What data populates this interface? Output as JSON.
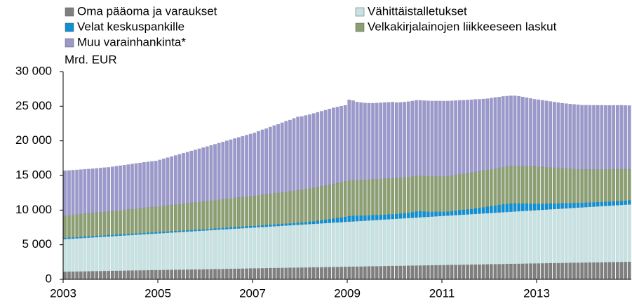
{
  "chart_data": {
    "type": "stacked-bar",
    "y_label": "Mrd. EUR",
    "categories": [
      "2003",
      null,
      null,
      null,
      null,
      null,
      null,
      null,
      null,
      null,
      null,
      null,
      null,
      null,
      null,
      null,
      null,
      null,
      null,
      null,
      null,
      null,
      null,
      null,
      "2005",
      null,
      null,
      null,
      null,
      null,
      null,
      null,
      null,
      null,
      null,
      null,
      null,
      null,
      null,
      null,
      null,
      null,
      null,
      null,
      null,
      null,
      null,
      null,
      "2007",
      null,
      null,
      null,
      null,
      null,
      null,
      null,
      null,
      null,
      null,
      null,
      null,
      null,
      null,
      null,
      null,
      null,
      null,
      null,
      null,
      null,
      null,
      null,
      "2009",
      null,
      null,
      null,
      null,
      null,
      null,
      null,
      null,
      null,
      null,
      null,
      null,
      null,
      null,
      null,
      null,
      null,
      null,
      null,
      null,
      null,
      null,
      null,
      "2011",
      null,
      null,
      null,
      null,
      null,
      null,
      null,
      null,
      null,
      null,
      null,
      null,
      null,
      null,
      null,
      null,
      null,
      null,
      null,
      null,
      null,
      null,
      null,
      "2013",
      null,
      null,
      null,
      null,
      null,
      null,
      null,
      null,
      null,
      null,
      null,
      null,
      null,
      null,
      null,
      null,
      null,
      null,
      null,
      null,
      null,
      null,
      null
    ],
    "ylim": [
      0,
      30000
    ],
    "yticks": [
      0,
      {
        "value": 5000,
        "label": "5 000"
      },
      {
        "value": 10000,
        "label": "10 000"
      },
      {
        "value": 15000,
        "label": "15 000"
      },
      {
        "value": 20000,
        "label": "20 000"
      },
      {
        "value": 25000,
        "label": "25 000"
      },
      {
        "value": 30000,
        "label": "30 000"
      }
    ],
    "series": [
      {
        "name": "Oma pääoma ja varaukset",
        "color": "#7f7f7f",
        "values": [
          1100,
          1110,
          1120,
          1130,
          1140,
          1150,
          1160,
          1170,
          1180,
          1190,
          1200,
          1210,
          1220,
          1230,
          1240,
          1250,
          1260,
          1270,
          1280,
          1290,
          1300,
          1310,
          1320,
          1330,
          1340,
          1350,
          1360,
          1370,
          1380,
          1390,
          1400,
          1410,
          1420,
          1430,
          1440,
          1450,
          1460,
          1470,
          1480,
          1490,
          1500,
          1510,
          1520,
          1530,
          1540,
          1550,
          1560,
          1570,
          1580,
          1590,
          1600,
          1610,
          1620,
          1630,
          1640,
          1650,
          1660,
          1670,
          1680,
          1690,
          1700,
          1710,
          1720,
          1730,
          1740,
          1750,
          1760,
          1770,
          1780,
          1790,
          1800,
          1810,
          1820,
          1830,
          1840,
          1850,
          1860,
          1870,
          1880,
          1890,
          1900,
          1910,
          1920,
          1930,
          1940,
          1950,
          1960,
          1970,
          1980,
          1990,
          2000,
          2010,
          2020,
          2030,
          2040,
          2050,
          2060,
          2070,
          2080,
          2090,
          2100,
          2110,
          2120,
          2130,
          2140,
          2150,
          2160,
          2170,
          2180,
          2190,
          2200,
          2210,
          2220,
          2230,
          2240,
          2250,
          2260,
          2270,
          2280,
          2290,
          2300,
          2310,
          2320,
          2330,
          2340,
          2350,
          2360,
          2370,
          2380,
          2390,
          2400,
          2410,
          2420,
          2430,
          2440,
          2450,
          2460,
          2470,
          2480,
          2490,
          2500,
          2510,
          2520,
          2530
        ]
      },
      {
        "name": "Vähittäistalletukset",
        "color": "#c6e2e2",
        "values": [
          4700,
          4725,
          4750,
          4775,
          4800,
          4825,
          4850,
          4875,
          4900,
          4925,
          4950,
          4975,
          5000,
          5025,
          5050,
          5075,
          5100,
          5125,
          5150,
          5175,
          5200,
          5225,
          5250,
          5275,
          5300,
          5325,
          5350,
          5375,
          5400,
          5425,
          5450,
          5475,
          5500,
          5525,
          5550,
          5575,
          5600,
          5625,
          5650,
          5675,
          5700,
          5725,
          5750,
          5775,
          5800,
          5825,
          5850,
          5875,
          5900,
          5925,
          5950,
          5975,
          6000,
          6025,
          6050,
          6075,
          6100,
          6125,
          6150,
          6175,
          6200,
          6225,
          6250,
          6275,
          6300,
          6325,
          6350,
          6375,
          6400,
          6425,
          6450,
          6475,
          6500,
          6525,
          6550,
          6575,
          6600,
          6625,
          6650,
          6675,
          6700,
          6725,
          6750,
          6775,
          6800,
          6825,
          6850,
          6875,
          6900,
          6925,
          6950,
          6975,
          7000,
          7025,
          7050,
          7075,
          7100,
          7125,
          7150,
          7175,
          7200,
          7225,
          7250,
          7275,
          7300,
          7325,
          7350,
          7375,
          7400,
          7425,
          7450,
          7475,
          7500,
          7525,
          7550,
          7575,
          7600,
          7625,
          7650,
          7675,
          7700,
          7725,
          7750,
          7775,
          7800,
          7825,
          7850,
          7875,
          7900,
          7925,
          7950,
          7975,
          8000,
          8025,
          8050,
          8075,
          8100,
          8125,
          8150,
          8175,
          8200,
          8225,
          8250,
          8275
        ]
      },
      {
        "name": "Velat keskuspankille",
        "color": "#0f8fd4",
        "values": [
          200,
          200,
          200,
          200,
          200,
          200,
          200,
          200,
          200,
          200,
          200,
          200,
          200,
          200,
          200,
          200,
          200,
          200,
          200,
          200,
          200,
          200,
          200,
          200,
          200,
          200,
          200,
          200,
          200,
          200,
          200,
          200,
          200,
          200,
          200,
          200,
          210,
          210,
          220,
          220,
          230,
          230,
          230,
          240,
          240,
          240,
          250,
          250,
          250,
          250,
          260,
          260,
          270,
          270,
          280,
          280,
          290,
          290,
          300,
          300,
          300,
          320,
          340,
          380,
          420,
          460,
          500,
          550,
          600,
          650,
          700,
          750,
          800,
          850,
          800,
          780,
          760,
          750,
          740,
          730,
          720,
          710,
          700,
          700,
          700,
          700,
          720,
          760,
          820,
          900,
          880,
          800,
          750,
          700,
          680,
          650,
          600,
          600,
          620,
          650,
          680,
          700,
          720,
          750,
          800,
          850,
          900,
          950,
          1000,
          1050,
          1100,
          1150,
          1200,
          1200,
          1200,
          1150,
          1100,
          1050,
          1000,
          950,
          900,
          880,
          860,
          840,
          820,
          800,
          780,
          760,
          740,
          720,
          700,
          680,
          660,
          650,
          640,
          630,
          620,
          610,
          600,
          600,
          600,
          600,
          600,
          600
        ]
      },
      {
        "name": "Velkakirjalainojen liikkeeseen laskut",
        "color": "#8b9f72",
        "values": [
          3200,
          3220,
          3240,
          3260,
          3280,
          3300,
          3310,
          3330,
          3350,
          3370,
          3390,
          3400,
          3420,
          3450,
          3470,
          3500,
          3520,
          3550,
          3580,
          3600,
          3630,
          3650,
          3680,
          3700,
          3720,
          3750,
          3770,
          3800,
          3820,
          3850,
          3880,
          3900,
          3930,
          3950,
          3980,
          4000,
          4020,
          4050,
          4070,
          4100,
          4120,
          4150,
          4180,
          4200,
          4230,
          4250,
          4280,
          4300,
          4330,
          4370,
          4400,
          4430,
          4470,
          4500,
          4530,
          4570,
          4600,
          4630,
          4670,
          4700,
          4730,
          4770,
          4800,
          4830,
          4870,
          4900,
          4930,
          4970,
          5000,
          5030,
          5070,
          5100,
          5110,
          5120,
          5130,
          5140,
          5150,
          5160,
          5170,
          5180,
          5190,
          5200,
          5200,
          5200,
          5200,
          5190,
          5180,
          5170,
          5160,
          5150,
          5140,
          5130,
          5120,
          5110,
          5100,
          5100,
          5100,
          5120,
          5140,
          5160,
          5180,
          5200,
          5220,
          5240,
          5260,
          5280,
          5290,
          5300,
          5310,
          5320,
          5330,
          5340,
          5350,
          5360,
          5370,
          5380,
          5390,
          5400,
          5400,
          5400,
          5350,
          5300,
          5250,
          5200,
          5150,
          5100,
          5050,
          5000,
          4950,
          4900,
          4850,
          4800,
          4780,
          4760,
          4740,
          4720,
          4700,
          4680,
          4660,
          4640,
          4620,
          4600,
          4550,
          4500
        ]
      },
      {
        "name": "Muu varainhankinta*",
        "color": "#9b99cc",
        "values": [
          6500,
          6480,
          6470,
          6450,
          6440,
          6430,
          6420,
          6410,
          6400,
          6400,
          6400,
          6400,
          6420,
          6440,
          6460,
          6480,
          6500,
          6520,
          6540,
          6560,
          6580,
          6590,
          6600,
          6600,
          6700,
          6800,
          6900,
          7000,
          7100,
          7200,
          7300,
          7400,
          7500,
          7600,
          7700,
          7800,
          7900,
          8000,
          8100,
          8200,
          8300,
          8400,
          8500,
          8600,
          8700,
          8800,
          8900,
          9000,
          9100,
          9250,
          9400,
          9500,
          9650,
          9800,
          9900,
          10050,
          10200,
          10300,
          10450,
          10600,
          10600,
          10650,
          10700,
          10750,
          10800,
          10850,
          10900,
          10950,
          11000,
          11000,
          11000,
          11000,
          11700,
          11500,
          11300,
          11200,
          11100,
          11050,
          11000,
          11000,
          11000,
          11000,
          11000,
          11000,
          10900,
          10900,
          10900,
          10900,
          10900,
          10900,
          10900,
          10900,
          10900,
          10900,
          10900,
          10900,
          10900,
          10850,
          10800,
          10750,
          10700,
          10650,
          10600,
          10550,
          10500,
          10400,
          10350,
          10300,
          10300,
          10300,
          10250,
          10250,
          10200,
          10200,
          10150,
          10100,
          10000,
          9900,
          9800,
          9700,
          9700,
          9650,
          9600,
          9550,
          9500,
          9450,
          9400,
          9380,
          9360,
          9340,
          9320,
          9300,
          9300,
          9290,
          9280,
          9270,
          9260,
          9250,
          9240,
          9230,
          9220,
          9210,
          9200,
          9200
        ]
      }
    ]
  }
}
